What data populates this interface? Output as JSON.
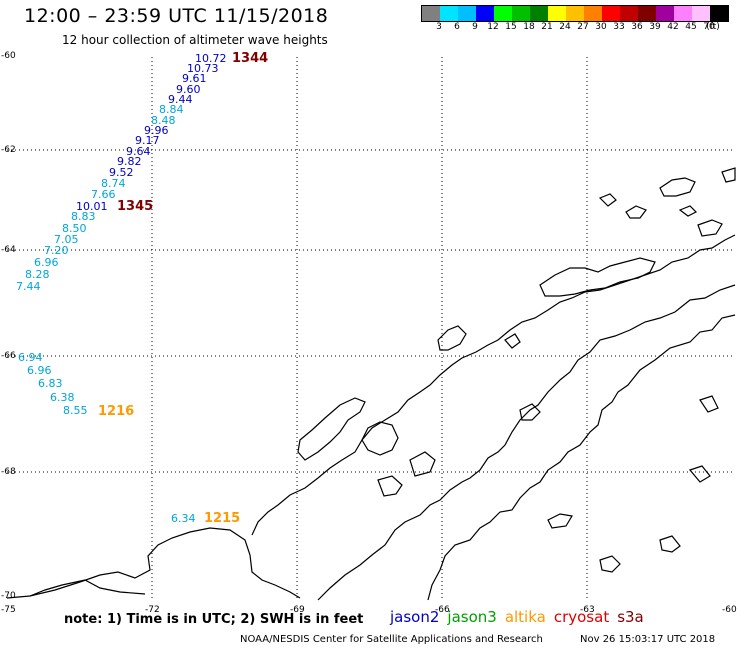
{
  "title": "12:00 – 23:59 UTC 11/15/2018",
  "subtitle": "12 hour collection of altimeter wave heights",
  "colorbar": {
    "colors": [
      "#808080",
      "#00e5ff",
      "#00bfff",
      "#0000ff",
      "#00ff00",
      "#00c000",
      "#008000",
      "#ffff00",
      "#ffc000",
      "#ff8000",
      "#ff0000",
      "#c00000",
      "#800000",
      "#a000a0",
      "#ff80ff",
      "#ffc0ff",
      "#000000"
    ],
    "labels": [
      "3",
      "6",
      "9",
      "12",
      "15",
      "18",
      "21",
      "24",
      "27",
      "30",
      "33",
      "36",
      "39",
      "42",
      "45",
      "70",
      "(ft)"
    ]
  },
  "lat_labels": [
    "-60",
    "-62",
    "-64",
    "-66",
    "-68",
    "-70"
  ],
  "lon_labels": [
    "-75",
    "-72",
    "-69",
    "-66",
    "-63",
    "-60"
  ],
  "colors": {
    "cyan": "#00a6d6",
    "blue": "#0000c8",
    "darkred": "#800000",
    "orange": "#ff9900"
  },
  "passes": [
    {
      "label": "1344",
      "color": "#800000"
    },
    {
      "label": "1345",
      "color": "#800000"
    },
    {
      "label": "1216",
      "color": "#ff9900"
    },
    {
      "label": "1215",
      "color": "#ff9900"
    }
  ],
  "wave_values": [
    {
      "v": "10.72",
      "c": "#0000c8"
    },
    {
      "v": "10.73",
      "c": "#0000c8"
    },
    {
      "v": "9.61",
      "c": "#0000c8"
    },
    {
      "v": "9.60",
      "c": "#0000c8"
    },
    {
      "v": "9.44",
      "c": "#0000c8"
    },
    {
      "v": "8.84",
      "c": "#00a6d6"
    },
    {
      "v": "8.48",
      "c": "#00a6d6"
    },
    {
      "v": "9.96",
      "c": "#0000c8"
    },
    {
      "v": "9.17",
      "c": "#0000c8"
    },
    {
      "v": "9.64",
      "c": "#0000c8"
    },
    {
      "v": "9.82",
      "c": "#0000c8"
    },
    {
      "v": "9.52",
      "c": "#0000c8"
    },
    {
      "v": "8.74",
      "c": "#00a6d6"
    },
    {
      "v": "7.66",
      "c": "#00a6d6"
    },
    {
      "v": "10.01",
      "c": "#0000c8"
    },
    {
      "v": "8.83",
      "c": "#00a6d6"
    },
    {
      "v": "8.50",
      "c": "#00a6d6"
    },
    {
      "v": "7.05",
      "c": "#00a6d6"
    },
    {
      "v": "7.20",
      "c": "#00a6d6"
    },
    {
      "v": "6.96",
      "c": "#00a6d6"
    },
    {
      "v": "8.28",
      "c": "#00a6d6"
    },
    {
      "v": "7.44",
      "c": "#00a6d6"
    },
    {
      "v": "6.94",
      "c": "#00a6d6"
    },
    {
      "v": "6.96",
      "c": "#00a6d6"
    },
    {
      "v": "6.83",
      "c": "#00a6d6"
    },
    {
      "v": "6.38",
      "c": "#00a6d6"
    },
    {
      "v": "8.55",
      "c": "#00a6d6"
    },
    {
      "v": "6.34",
      "c": "#00a6d6"
    }
  ],
  "note": "note: 1) Time is in UTC; 2) SWH is in feet",
  "legend": [
    {
      "label": "jason2",
      "color": "#0000c8"
    },
    {
      "label": "jason3",
      "color": "#00a000"
    },
    {
      "label": "altika",
      "color": "#ff9900"
    },
    {
      "label": "cryosat",
      "color": "#e00000"
    },
    {
      "label": "s3a",
      "color": "#800000"
    }
  ],
  "footer": "NOAA/NESDIS Center for Satellite Applications and Research",
  "footer_date": "Nov 26 15:03:17 UTC 2018"
}
